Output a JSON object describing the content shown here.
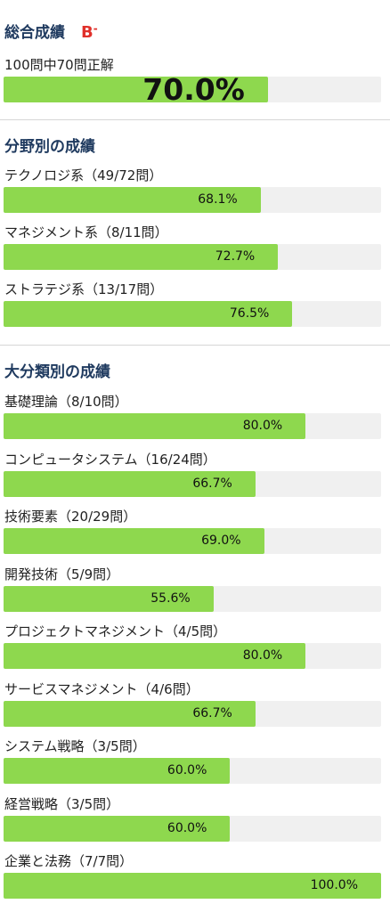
{
  "overall": {
    "title": "総合成績",
    "grade": "B",
    "grade_suffix": "-",
    "summary": "100問中70問正解",
    "percent_text": "70.0%",
    "value": 70.0
  },
  "field": {
    "title": "分野別の成績",
    "items": [
      {
        "label": "テクノロジ系（49/72問）",
        "percent_text": "68.1%",
        "value": 68.1
      },
      {
        "label": "マネジメント系（8/11問）",
        "percent_text": "72.7%",
        "value": 72.7
      },
      {
        "label": "ストラテジ系（13/17問）",
        "percent_text": "76.5%",
        "value": 76.5
      }
    ]
  },
  "category": {
    "title": "大分類別の成績",
    "items": [
      {
        "label": "基礎理論（8/10問）",
        "percent_text": "80.0%",
        "value": 80.0
      },
      {
        "label": "コンピュータシステム（16/24問）",
        "percent_text": "66.7%",
        "value": 66.7
      },
      {
        "label": "技術要素（20/29問）",
        "percent_text": "69.0%",
        "value": 69.0
      },
      {
        "label": "開発技術（5/9問）",
        "percent_text": "55.6%",
        "value": 55.6
      },
      {
        "label": "プロジェクトマネジメント（4/5問）",
        "percent_text": "80.0%",
        "value": 80.0
      },
      {
        "label": "サービスマネジメント（4/6問）",
        "percent_text": "66.7%",
        "value": 66.7
      },
      {
        "label": "システム戦略（3/5問）",
        "percent_text": "60.0%",
        "value": 60.0
      },
      {
        "label": "経営戦略（3/5問）",
        "percent_text": "60.0%",
        "value": 60.0
      },
      {
        "label": "企業と法務（7/7問）",
        "percent_text": "100.0%",
        "value": 100.0
      }
    ]
  },
  "colors": {
    "bar_fill": "#8ed84e",
    "bar_track": "#f0f0f0",
    "heading": "#1f3a5f",
    "grade": "#e0302a"
  }
}
